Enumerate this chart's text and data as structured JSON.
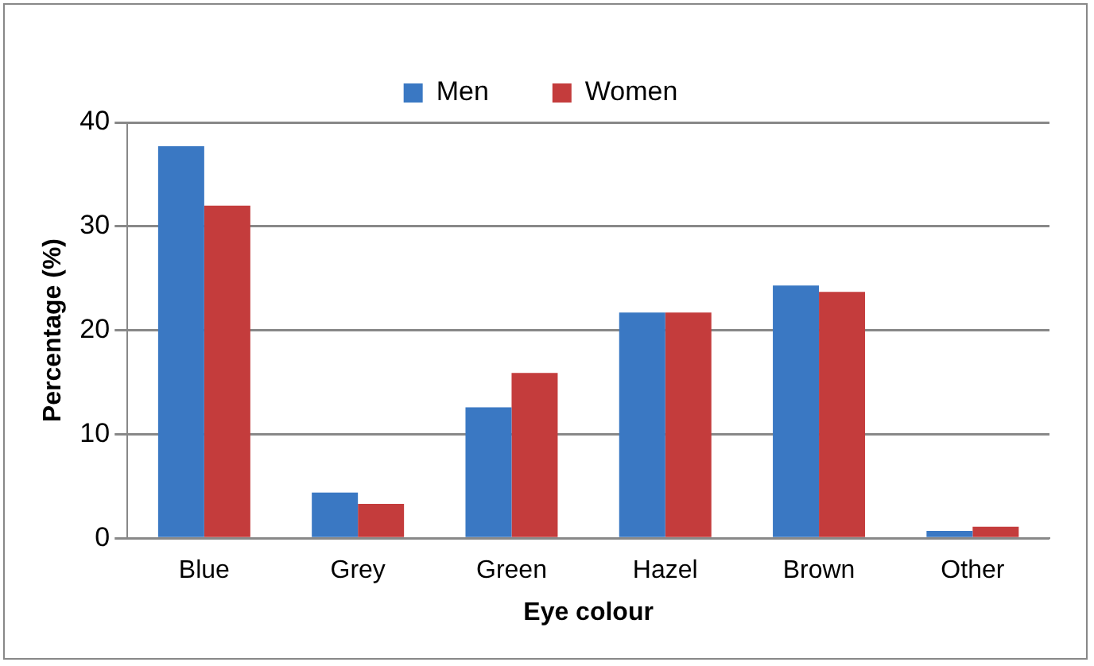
{
  "chart_data": {
    "type": "bar",
    "xlabel": "Eye colour",
    "ylabel": "Percentage (%)",
    "categories": [
      "Blue",
      "Grey",
      "Green",
      "Hazel",
      "Brown",
      "Other"
    ],
    "series": [
      {
        "name": "Men",
        "color": "#3a78c3",
        "values": [
          37.7,
          4.4,
          12.6,
          21.7,
          24.3,
          0.7
        ]
      },
      {
        "name": "Women",
        "color": "#c43c3c",
        "values": [
          32.0,
          3.3,
          15.9,
          21.7,
          23.7,
          1.1
        ]
      }
    ],
    "ylim": [
      0,
      40
    ],
    "yticks": [
      0,
      10,
      20,
      30,
      40
    ],
    "grid": "y",
    "legend": "top"
  }
}
